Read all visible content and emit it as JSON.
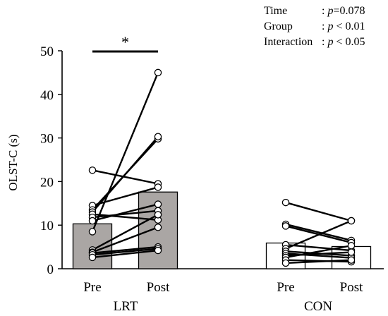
{
  "chart_data": {
    "type": "bar",
    "ylabel": "OLST-C (s)",
    "ylim": [
      0,
      50
    ],
    "yticks": [
      "0",
      "10",
      "20",
      "30",
      "40",
      "50"
    ],
    "groups": [
      {
        "name": "LRT",
        "bar_color": "#aaa6a4",
        "conditions": [
          "Pre",
          "Post"
        ],
        "means": [
          10.3,
          17.6
        ],
        "subjects": [
          [
            22.6,
            19.5
          ],
          [
            14.5,
            18.7
          ],
          [
            13.5,
            29.8
          ],
          [
            13.0,
            30.3
          ],
          [
            12.5,
            11.2
          ],
          [
            11.8,
            13.3
          ],
          [
            11.0,
            14.8
          ],
          [
            8.5,
            45.0
          ],
          [
            4.3,
            12.4
          ],
          [
            3.8,
            9.5
          ],
          [
            3.6,
            5.0
          ],
          [
            3.2,
            4.6
          ],
          [
            2.6,
            4.2
          ]
        ]
      },
      {
        "name": "CON",
        "bar_color": "#ffffff",
        "conditions": [
          "Pre",
          "Post"
        ],
        "means": [
          5.9,
          5.1
        ],
        "subjects": [
          [
            15.2,
            11.0
          ],
          [
            10.2,
            6.5
          ],
          [
            9.8,
            6.0
          ],
          [
            5.5,
            4.2
          ],
          [
            4.6,
            11.0
          ],
          [
            4.0,
            3.0
          ],
          [
            3.5,
            2.5
          ],
          [
            3.0,
            3.8
          ],
          [
            2.6,
            5.3
          ],
          [
            2.0,
            1.6
          ],
          [
            1.3,
            2.0
          ]
        ]
      }
    ],
    "significance": {
      "label": "*",
      "group": "LRT"
    },
    "annotations": [
      {
        "label": "Time",
        "value_prefix": ": ",
        "value_italic": "p",
        "value_rest": "=0.078"
      },
      {
        "label": "Group",
        "value_prefix": ": ",
        "value_italic": "p",
        "value_rest": " < 0.01"
      },
      {
        "label": "Interaction",
        "value_prefix": ": ",
        "value_italic": "p",
        "value_rest": " < 0.05"
      }
    ]
  }
}
